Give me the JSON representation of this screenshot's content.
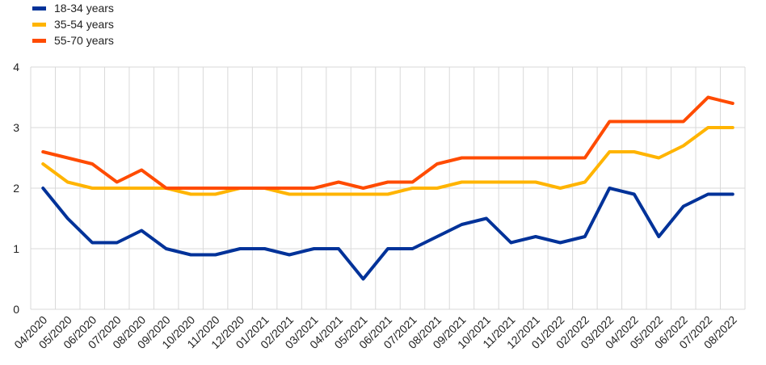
{
  "chart_data": {
    "type": "line",
    "title": "",
    "xlabel": "",
    "ylabel": "",
    "ylim": [
      0,
      4
    ],
    "yticks": [
      0,
      1,
      2,
      3,
      4
    ],
    "grid": true,
    "legend_position": "top-left",
    "categories": [
      "04/2020",
      "05/2020",
      "06/2020",
      "07/2020",
      "08/2020",
      "09/2020",
      "10/2020",
      "11/2020",
      "12/2020",
      "01/2021",
      "02/2021",
      "03/2021",
      "04/2021",
      "05/2021",
      "06/2021",
      "07/2021",
      "08/2021",
      "09/2021",
      "10/2021",
      "11/2021",
      "12/2021",
      "01/2022",
      "02/2022",
      "03/2022",
      "04/2022",
      "05/2022",
      "06/2022",
      "07/2022",
      "08/2022"
    ],
    "series": [
      {
        "name": "18-34 years",
        "color": "#003299",
        "values": [
          2.0,
          1.5,
          1.1,
          1.1,
          1.3,
          1.0,
          0.9,
          0.9,
          1.0,
          1.0,
          0.9,
          1.0,
          1.0,
          0.5,
          1.0,
          1.0,
          1.2,
          1.4,
          1.5,
          1.1,
          1.2,
          1.1,
          1.2,
          2.0,
          1.9,
          1.2,
          1.7,
          1.9,
          1.9
        ]
      },
      {
        "name": "35-54 years",
        "color": "#FFB400",
        "values": [
          2.4,
          2.1,
          2.0,
          2.0,
          2.0,
          2.0,
          1.9,
          1.9,
          2.0,
          2.0,
          1.9,
          1.9,
          1.9,
          1.9,
          1.9,
          2.0,
          2.0,
          2.1,
          2.1,
          2.1,
          2.1,
          2.0,
          2.1,
          2.6,
          2.6,
          2.5,
          2.7,
          3.0,
          3.0
        ]
      },
      {
        "name": "55-70 years",
        "color": "#FF4B00",
        "values": [
          2.6,
          2.5,
          2.4,
          2.1,
          2.3,
          2.0,
          2.0,
          2.0,
          2.0,
          2.0,
          2.0,
          2.0,
          2.1,
          2.0,
          2.1,
          2.1,
          2.4,
          2.5,
          2.5,
          2.5,
          2.5,
          2.5,
          2.5,
          3.1,
          3.1,
          3.1,
          3.1,
          3.5,
          3.4
        ]
      }
    ]
  }
}
